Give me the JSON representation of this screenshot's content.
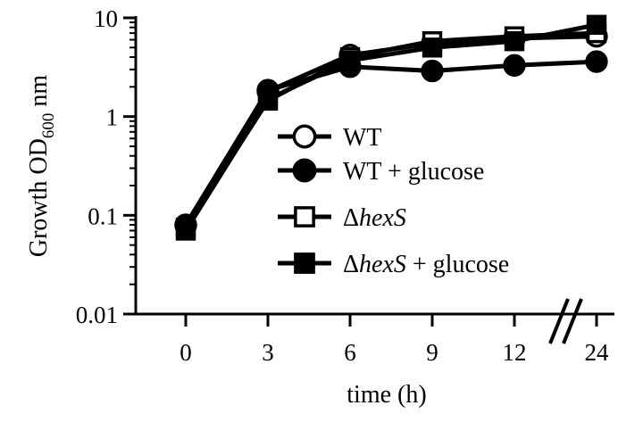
{
  "chart_data": {
    "type": "line",
    "xlabel": "time (h)",
    "ylabel": {
      "main": "Growth OD",
      "sub": "600",
      "unit": "nm"
    },
    "y_scale": "log",
    "ylim": [
      0.01,
      10
    ],
    "y_ticks": [
      "0.01",
      "0.1",
      "1",
      "10"
    ],
    "x_categories": [
      "0",
      "3",
      "6",
      "9",
      "12",
      "24"
    ],
    "x_axis_break": "between 12 and 24",
    "grid": false,
    "legend_position": "center-right",
    "series": [
      {
        "name": "WT",
        "name_parts": [
          {
            "text": "WT",
            "italic": false
          }
        ],
        "marker": "circle-open",
        "values": [
          0.08,
          1.8,
          4.2,
          5.5,
          6.2,
          6.5
        ]
      },
      {
        "name": "WT +  glucose",
        "name_parts": [
          {
            "text": "WT +  glucose",
            "italic": false
          }
        ],
        "marker": "circle-filled",
        "values": [
          0.08,
          1.85,
          3.2,
          2.9,
          3.3,
          3.6
        ]
      },
      {
        "name": "ΔhexS",
        "name_parts": [
          {
            "text": "Δ",
            "italic": false
          },
          {
            "text": "hexS",
            "italic": true
          }
        ],
        "marker": "square-open",
        "values": [
          0.075,
          1.45,
          4.0,
          5.8,
          6.5,
          7.0
        ]
      },
      {
        "name": "ΔhexS + glucose",
        "name_parts": [
          {
            "text": "Δ",
            "italic": false
          },
          {
            "text": "hexS",
            "italic": true
          },
          {
            "text": " + glucose",
            "italic": false
          }
        ],
        "marker": "square-filled",
        "values": [
          0.07,
          1.5,
          3.7,
          5.0,
          5.8,
          8.5
        ]
      }
    ]
  }
}
